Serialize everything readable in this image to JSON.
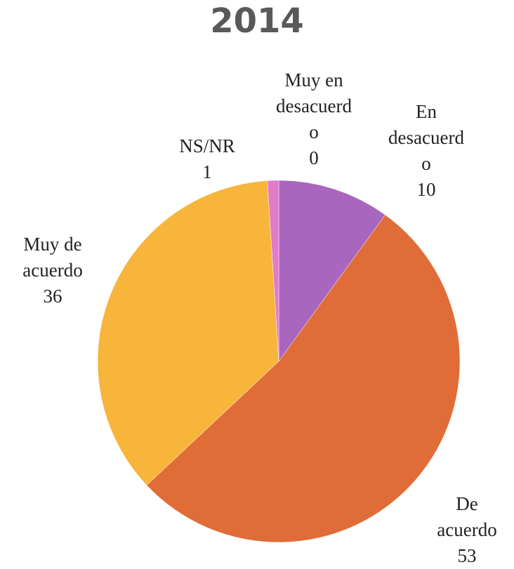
{
  "chart_data": {
    "type": "pie",
    "title": "2014",
    "categories": [
      "Muy en desacuerdo",
      "En desacuerdo",
      "De acuerdo",
      "Muy de acuerdo",
      "NS/NR"
    ],
    "values": [
      0,
      10,
      53,
      36,
      1
    ],
    "colors": [
      "#c0305a",
      "#a966bf",
      "#e06c37",
      "#f8b53b",
      "#e27bc9"
    ]
  }
}
